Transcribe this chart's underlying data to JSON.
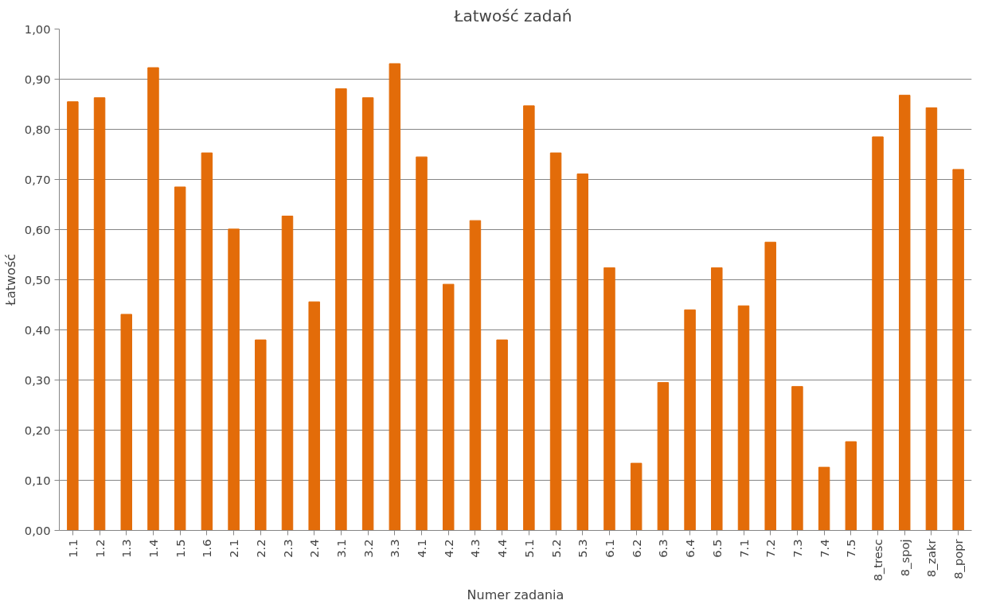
{
  "chart_data": {
    "type": "bar",
    "title": "Łatwość  zadań",
    "xlabel": "Numer zadania",
    "ylabel": "Łatwość",
    "categories": [
      "1.1",
      "1.2",
      "1.3",
      "1.4",
      "1.5",
      "1.6",
      "2.1",
      "2.2",
      "2.3",
      "2.4",
      "3.1",
      "3.2",
      "3.3",
      "4.1",
      "4.2",
      "4.3",
      "4.4",
      "5.1",
      "5.2",
      "5.3",
      "6.1",
      "6.2",
      "6.3",
      "6.4",
      "6.5",
      "7.1",
      "7.2",
      "7.3",
      "7.4",
      "7.5",
      "8_tresc",
      "8_spoj",
      "8_zakr",
      "8_popr"
    ],
    "values": [
      0.855,
      0.863,
      0.431,
      0.923,
      0.685,
      0.753,
      0.601,
      0.38,
      0.627,
      0.456,
      0.881,
      0.863,
      0.931,
      0.745,
      0.491,
      0.618,
      0.38,
      0.847,
      0.753,
      0.711,
      0.524,
      0.134,
      0.295,
      0.44,
      0.524,
      0.448,
      0.575,
      0.287,
      0.126,
      0.177,
      0.785,
      0.868,
      0.843,
      0.72
    ],
    "color": "#e36c09",
    "ylim": [
      0,
      1
    ],
    "yticks": [
      {
        "value": 0,
        "label": "0,00"
      },
      {
        "value": 0.1,
        "label": "0,10"
      },
      {
        "value": 0.2,
        "label": "0,20"
      },
      {
        "value": 0.3,
        "label": "0,30"
      },
      {
        "value": 0.4,
        "label": "0,40"
      },
      {
        "value": 0.5,
        "label": "0,50"
      },
      {
        "value": 0.6,
        "label": "0,60"
      },
      {
        "value": 0.7,
        "label": "0,70"
      },
      {
        "value": 0.8,
        "label": "0,80"
      },
      {
        "value": 0.9,
        "label": "0,90"
      },
      {
        "value": 1,
        "label": "1,00"
      }
    ],
    "grid": "y"
  }
}
